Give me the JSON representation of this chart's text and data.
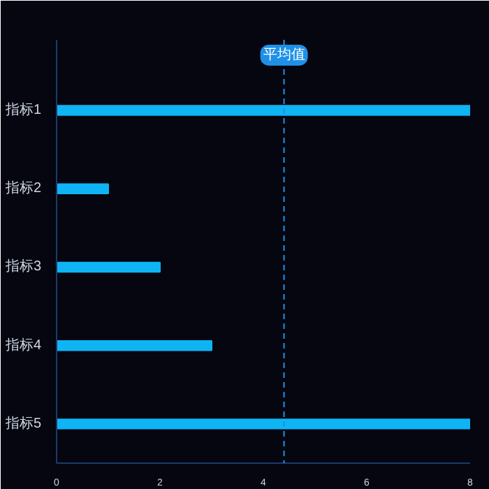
{
  "chart_data": {
    "type": "bar",
    "orientation": "horizontal",
    "categories": [
      "指标1",
      "指标2",
      "指标3",
      "指标4",
      "指标5"
    ],
    "values": [
      8,
      1,
      2,
      3,
      8
    ],
    "color": "#0fb4f5",
    "xlim": [
      0,
      8
    ],
    "xticks": [
      0,
      2,
      4,
      6,
      8
    ],
    "grid": false,
    "ref_lines": [
      {
        "axis": "x",
        "value": 4.4,
        "label": "平均值",
        "color": "#1e90e8",
        "line_style": "dashed"
      }
    ]
  }
}
